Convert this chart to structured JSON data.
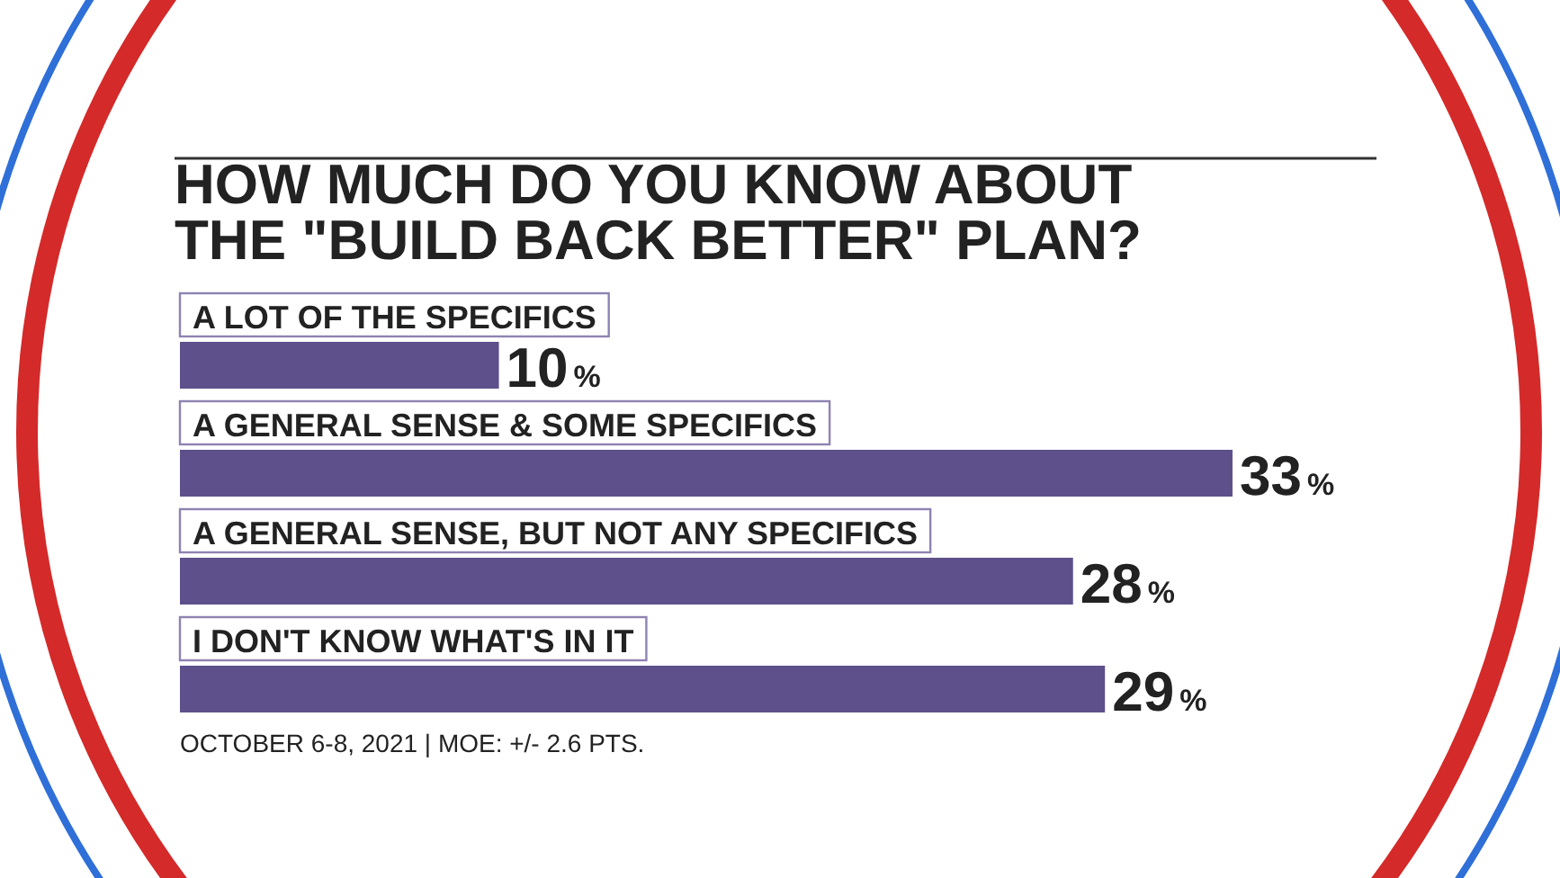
{
  "chart_data": {
    "type": "bar",
    "orientation": "horizontal",
    "title": "HOW MUCH DO YOU KNOW ABOUT THE \"BUILD BACK BETTER\" PLAN?",
    "categories": [
      "A LOT OF THE SPECIFICS",
      "A GENERAL SENSE & SOME SPECIFICS",
      "A GENERAL SENSE, BUT NOT ANY SPECIFICS",
      "I DON'T KNOW WHAT'S IN IT"
    ],
    "values": [
      10,
      33,
      28,
      29
    ],
    "value_labels": [
      "10%",
      "33%",
      "28%",
      "29%"
    ],
    "color": "#5e508b",
    "annotations": [
      "OCTOBER 6-8, 2021 | MOE: +/- 2.6 PTS."
    ]
  }
}
